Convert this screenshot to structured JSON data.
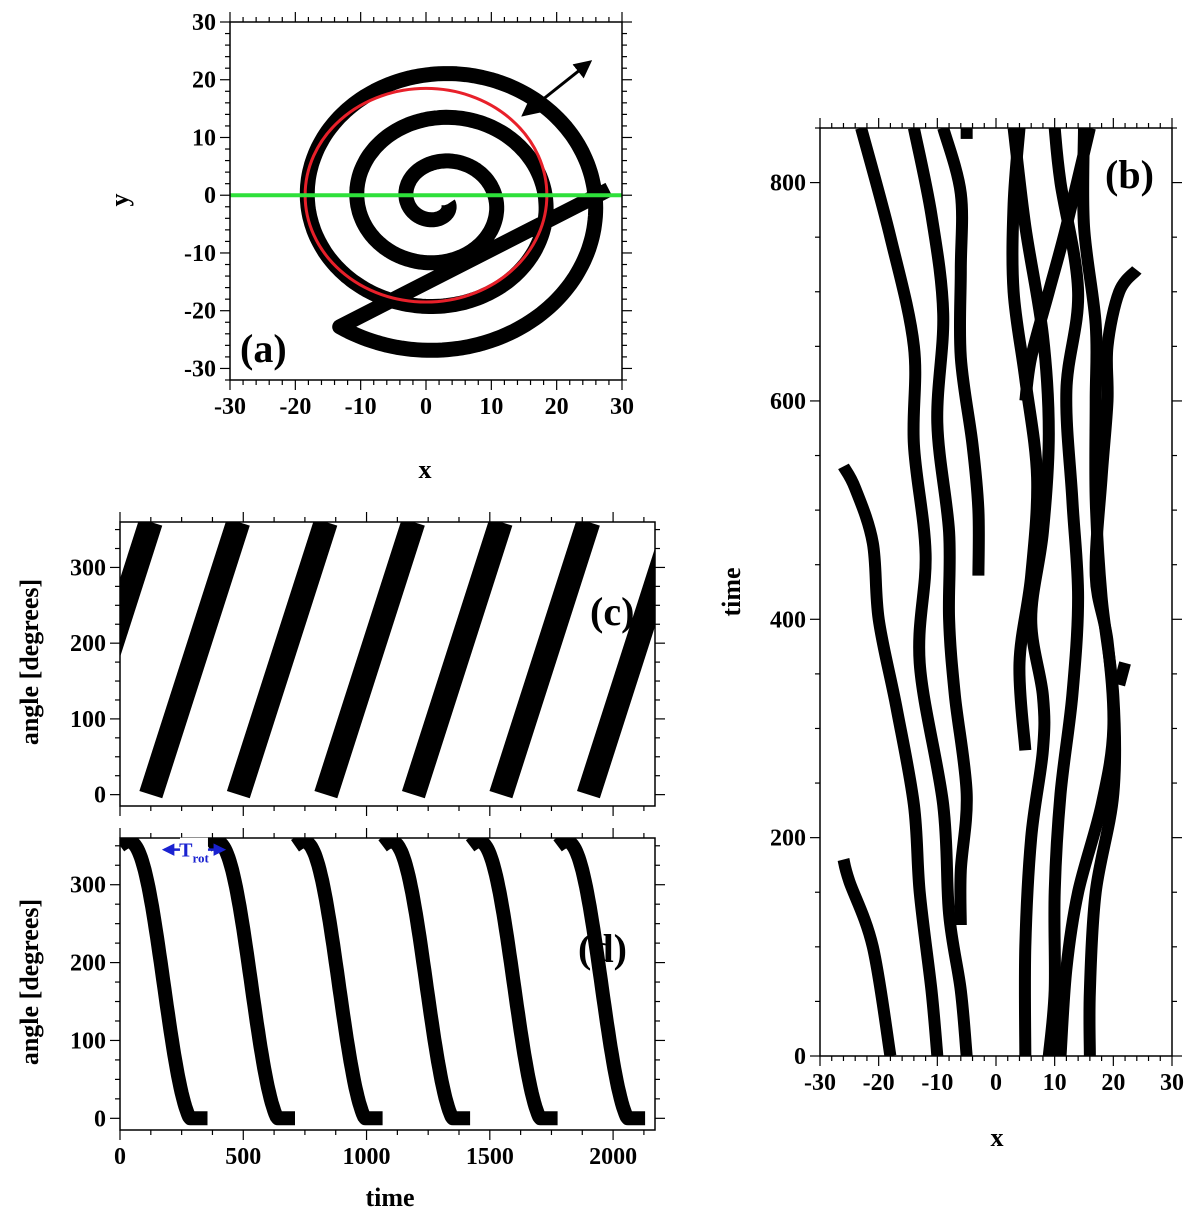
{
  "chart_data": [
    {
      "id": "a",
      "type": "scatter",
      "panel_label": "(a)",
      "xlabel": "x",
      "ylabel": "y",
      "xlim": [
        -30,
        30
      ],
      "ylim": [
        -32,
        30
      ],
      "x_ticks": [
        -30,
        -20,
        -10,
        0,
        10,
        20,
        30
      ],
      "x_tick_labels": [
        "-30",
        "-20",
        "-10",
        "0",
        "10",
        "20",
        "30"
      ],
      "y_ticks": [
        -30,
        -20,
        -10,
        0,
        10,
        20,
        30
      ],
      "y_tick_labels": [
        "-30",
        "-20",
        "-10",
        "0",
        "10",
        "20",
        "30"
      ],
      "spiral": {
        "center": [
          2,
          -1
        ],
        "start_radius": 1.5,
        "pitch_per_turn": 7.6,
        "turns": 3.3,
        "end_point": [
          28,
          1
        ]
      },
      "circle": {
        "center": [
          0,
          0
        ],
        "radius": 18.5,
        "color": "#e8202a"
      },
      "hline": {
        "y": 0,
        "x_range": [
          -30,
          30
        ],
        "color": "#2ee03a"
      },
      "arrow": {
        "from": [
          15,
          14
        ],
        "to": [
          25,
          23
        ]
      }
    },
    {
      "id": "b",
      "type": "line",
      "panel_label": "(b)",
      "xlabel": "x",
      "ylabel": "time",
      "xlim": [
        -30,
        30
      ],
      "ylim": [
        0,
        850
      ],
      "x_ticks": [
        -30,
        -20,
        -10,
        0,
        10,
        20,
        30
      ],
      "x_tick_labels": [
        "-30",
        "-20",
        "-10",
        "0",
        "10",
        "20",
        "30"
      ],
      "y_ticks": [
        0,
        200,
        400,
        600,
        800
      ],
      "y_tick_labels": [
        "0",
        "200",
        "400",
        "600",
        "800"
      ],
      "series": [
        {
          "points": [
            [
              -18,
              0
            ],
            [
              -21,
              100
            ],
            [
              -25,
              160
            ],
            [
              -26,
              180
            ]
          ]
        },
        {
          "points": [
            [
              -10,
              0
            ],
            [
              -11,
              60
            ],
            [
              -13,
              150
            ],
            [
              -14,
              230
            ],
            [
              -17,
              320
            ],
            [
              -20,
              400
            ],
            [
              -21,
              470
            ],
            [
              -24,
              520
            ],
            [
              -26,
              540
            ]
          ]
        },
        {
          "points": [
            [
              -5,
              0
            ],
            [
              -6,
              60
            ],
            [
              -8,
              130
            ],
            [
              -9,
              230
            ],
            [
              -13,
              360
            ],
            [
              -12,
              460
            ],
            [
              -14,
              560
            ],
            [
              -14,
              650
            ],
            [
              -18,
              750
            ],
            [
              -23,
              850
            ]
          ]
        },
        {
          "points": [
            [
              -6,
              120
            ],
            [
              -6,
              170
            ],
            [
              -5,
              240
            ],
            [
              -7,
              330
            ],
            [
              -8,
              400
            ],
            [
              -8,
              480
            ],
            [
              -10,
              580
            ],
            [
              -9,
              680
            ],
            [
              -11,
              770
            ],
            [
              -14,
              850
            ]
          ]
        },
        {
          "points": [
            [
              -3,
              440
            ],
            [
              -3,
              500
            ],
            [
              -4,
              560
            ],
            [
              -6,
              640
            ],
            [
              -6,
              720
            ],
            [
              -6,
              790
            ],
            [
              -9,
              850
            ]
          ]
        },
        {
          "points": [
            [
              -5,
              840
            ],
            [
              -5,
              850
            ]
          ]
        },
        {
          "points": [
            [
              5,
              0
            ],
            [
              5,
              100
            ],
            [
              6,
              200
            ],
            [
              8,
              280
            ],
            [
              8,
              330
            ],
            [
              6,
              400
            ],
            [
              8,
              480
            ],
            [
              9,
              570
            ],
            [
              8,
              660
            ],
            [
              5,
              760
            ],
            [
              3,
              850
            ]
          ]
        },
        {
          "points": [
            [
              5,
              280
            ],
            [
              4,
              360
            ],
            [
              6,
              440
            ],
            [
              7,
              530
            ],
            [
              5,
              620
            ],
            [
              3,
              700
            ],
            [
              3,
              780
            ],
            [
              4,
              850
            ]
          ]
        },
        {
          "points": [
            [
              9,
              0
            ],
            [
              10,
              60
            ],
            [
              10,
              150
            ],
            [
              11,
              240
            ],
            [
              13,
              330
            ],
            [
              14,
              420
            ],
            [
              13,
              510
            ],
            [
              12,
              610
            ],
            [
              14,
              700
            ],
            [
              11,
              800
            ],
            [
              10,
              850
            ]
          ]
        },
        {
          "points": [
            [
              16,
              0
            ],
            [
              16,
              60
            ],
            [
              17,
              150
            ],
            [
              20,
              240
            ],
            [
              20,
              330
            ],
            [
              18,
              420
            ],
            [
              17,
              510
            ],
            [
              17,
              600
            ],
            [
              17,
              670
            ],
            [
              15,
              760
            ],
            [
              15,
              850
            ]
          ]
        },
        {
          "points": [
            [
              11,
              0
            ],
            [
              12,
              80
            ],
            [
              14,
              150
            ],
            [
              18,
              230
            ],
            [
              20,
              300
            ],
            [
              19,
              380
            ],
            [
              17,
              440
            ],
            [
              18,
              530
            ],
            [
              19,
              600
            ],
            [
              19,
              650
            ],
            [
              21,
              700
            ],
            [
              24,
              720
            ]
          ]
        },
        {
          "points": [
            [
              21,
              340
            ],
            [
              22,
              360
            ]
          ]
        },
        {
          "points": [
            [
              5,
              600
            ],
            [
              6,
              640
            ],
            [
              9,
              700
            ],
            [
              12,
              760
            ],
            [
              16,
              850
            ]
          ]
        }
      ]
    },
    {
      "id": "c",
      "type": "scatter",
      "panel_label": "(c)",
      "xlabel": "",
      "ylabel": "angle [degrees]",
      "xlim": [
        0,
        2170
      ],
      "ylim": [
        -15,
        360
      ],
      "x_ticks": [
        0,
        500,
        1000,
        1500,
        2000
      ],
      "x_tick_labels": [
        "",
        "",
        "",
        "",
        ""
      ],
      "y_ticks": [
        0,
        100,
        200,
        300
      ],
      "y_tick_labels": [
        "0",
        "100",
        "200",
        "300"
      ],
      "period": 355,
      "starts": [
        -230,
        125,
        480,
        835,
        1190,
        1545,
        1900
      ]
    },
    {
      "id": "d",
      "type": "scatter",
      "panel_label": "(d)",
      "xlabel": "time",
      "ylabel": "angle [degrees]",
      "xlim": [
        0,
        2170
      ],
      "ylim": [
        -15,
        360
      ],
      "x_ticks": [
        0,
        500,
        1000,
        1500,
        2000
      ],
      "x_tick_labels": [
        "0",
        "500",
        "1000",
        "1500",
        "2000"
      ],
      "y_ticks": [
        0,
        100,
        200,
        300
      ],
      "y_tick_labels": [
        "0",
        "100",
        "200",
        "300"
      ],
      "annotation": {
        "text": "T",
        "subscript": "rot",
        "x_range": [
          180,
          420
        ],
        "y": 345,
        "color": "#1a22d0"
      },
      "period": 710,
      "offsets": [
        0,
        355,
        710,
        1065,
        1420,
        1775,
        -355
      ]
    }
  ],
  "colors": {
    "ink": "#000000",
    "circle": "#e8202a",
    "green_line": "#2ee03a",
    "annotation": "#1a22d0"
  }
}
